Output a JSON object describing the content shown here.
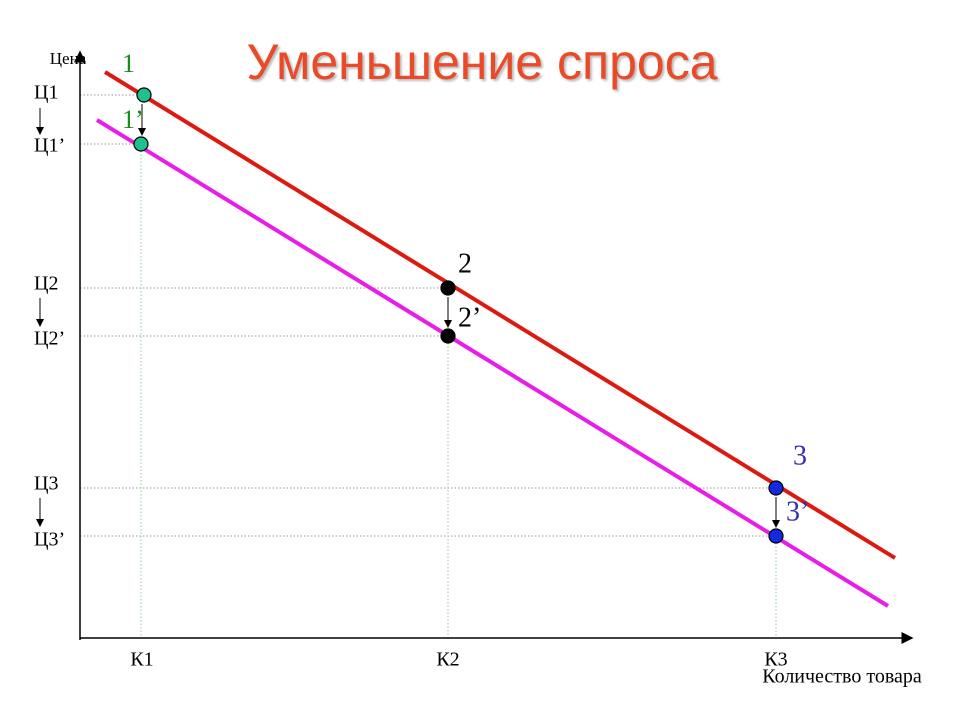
{
  "title": "Уменьшение спроса",
  "y_axis_label": "Цена",
  "x_axis_label": "Количество товара",
  "y_labels": [
    "Ц1",
    "Ц1’",
    "Ц2",
    "Ц2’",
    "Ц3",
    "Ц3’"
  ],
  "x_labels": [
    "К1",
    "К2",
    "К3"
  ],
  "points": [
    "1",
    "1’",
    "2",
    "2’",
    "3",
    "3’"
  ]
}
